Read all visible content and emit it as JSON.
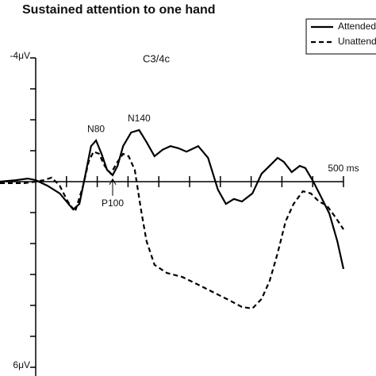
{
  "chart_data": {
    "type": "line",
    "title": "Sustained attention to one hand",
    "subtitle": "C3/4c",
    "xlim": [
      -58,
      500
    ],
    "ylim": [
      -4,
      6
    ],
    "y_inverted": true,
    "xticks": [
      {
        "value": 500,
        "label": "500 ms"
      }
    ],
    "xminorticks": [
      50,
      100,
      150,
      200,
      250,
      300,
      350,
      400,
      450
    ],
    "yticks": [
      {
        "value": -4,
        "label": "-4μV"
      },
      {
        "value": 6,
        "label": "6μV"
      }
    ],
    "yminorticks": [
      -3,
      -2,
      -1,
      1,
      2,
      3,
      4,
      5
    ],
    "legend": "top-right",
    "series": [
      {
        "name": "Attended",
        "color": "#000000",
        "dash": "solid",
        "x": [
          -58,
          -32,
          -13,
          0,
          19,
          39,
          61,
          71,
          81,
          90,
          98,
          107,
          116,
          125,
          133,
          142,
          155,
          168,
          180,
          193,
          206,
          219,
          232,
          245,
          264,
          280,
          296,
          309,
          322,
          335,
          352,
          367,
          380,
          393,
          403,
          416,
          429,
          438,
          451,
          464,
          477,
          490,
          500
        ],
        "values": [
          0,
          -0.05,
          -0.1,
          -0.05,
          0.13,
          0.38,
          0.9,
          0.72,
          -0.26,
          -1.15,
          -1.33,
          -0.9,
          -0.38,
          -0.21,
          -0.51,
          -1.15,
          -1.59,
          -1.67,
          -1.28,
          -0.82,
          -1.03,
          -1.15,
          -1.08,
          -0.97,
          -1.15,
          -0.77,
          0.26,
          0.72,
          0.56,
          0.64,
          0.38,
          -0.26,
          -0.51,
          -0.77,
          -0.64,
          -0.31,
          -0.51,
          -0.44,
          0,
          0.51,
          1.03,
          1.92,
          2.82
        ]
      },
      {
        "name": "Unattended",
        "color": "#000000",
        "dash": "dashed",
        "x": [
          -58,
          -19,
          0,
          13,
          26,
          39,
          52,
          64,
          77,
          86,
          94,
          103,
          112,
          122,
          133,
          142,
          151,
          161,
          171,
          180,
          193,
          213,
          238,
          264,
          290,
          316,
          335,
          352,
          367,
          380,
          393,
          406,
          419,
          434,
          447,
          460,
          473,
          487,
          500
        ],
        "values": [
          0.05,
          0.05,
          0,
          -0.05,
          -0.13,
          0.13,
          0.64,
          0.97,
          0.13,
          -0.64,
          -0.97,
          -0.9,
          -0.51,
          -0.26,
          -0.64,
          -0.9,
          -0.82,
          -0.38,
          0.9,
          1.92,
          2.69,
          2.95,
          3.08,
          3.33,
          3.59,
          3.85,
          4.05,
          4.1,
          3.79,
          3.21,
          2.31,
          1.28,
          0.72,
          0.31,
          0.38,
          0.64,
          0.77,
          1.15,
          1.54
        ]
      }
    ],
    "annotations": [
      {
        "text": "N80",
        "x": 98,
        "y": -1.33,
        "position": "above"
      },
      {
        "text": "N140",
        "x": 168,
        "y": -1.67,
        "position": "above"
      },
      {
        "text": "P100",
        "x": 125,
        "y": -0.21,
        "position": "below-arrow"
      }
    ]
  }
}
